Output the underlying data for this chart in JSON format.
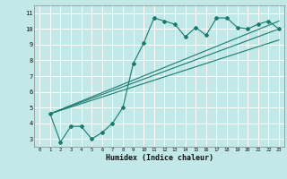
{
  "xlabel": "Humidex (Indice chaleur)",
  "bg_color": "#c2e8e8",
  "grid_color": "#ffffff",
  "line_color": "#1a7a6e",
  "xlim": [
    -0.5,
    23.5
  ],
  "ylim": [
    2.5,
    11.5
  ],
  "xticks": [
    0,
    1,
    2,
    3,
    4,
    5,
    6,
    7,
    8,
    9,
    10,
    11,
    12,
    13,
    14,
    15,
    16,
    17,
    18,
    19,
    20,
    21,
    22,
    23
  ],
  "yticks": [
    3,
    4,
    5,
    6,
    7,
    8,
    9,
    10,
    11
  ],
  "series1_x": [
    1,
    2,
    3,
    4,
    5,
    6,
    7,
    8,
    9,
    10,
    11,
    12,
    13,
    14,
    15,
    16,
    17,
    18,
    19,
    20,
    21,
    22,
    23
  ],
  "series1_y": [
    4.6,
    2.8,
    3.8,
    3.8,
    3.0,
    3.4,
    4.0,
    5.0,
    7.8,
    9.1,
    10.7,
    10.5,
    10.3,
    9.5,
    10.1,
    9.6,
    10.7,
    10.7,
    10.1,
    10.0,
    10.3,
    10.5,
    10.0
  ],
  "line1_x": [
    1,
    23
  ],
  "line1_y": [
    4.6,
    10.0
  ],
  "line2_x": [
    1,
    23
  ],
  "line2_y": [
    4.6,
    9.3
  ],
  "line3_x": [
    1,
    23
  ],
  "line3_y": [
    4.6,
    10.5
  ]
}
